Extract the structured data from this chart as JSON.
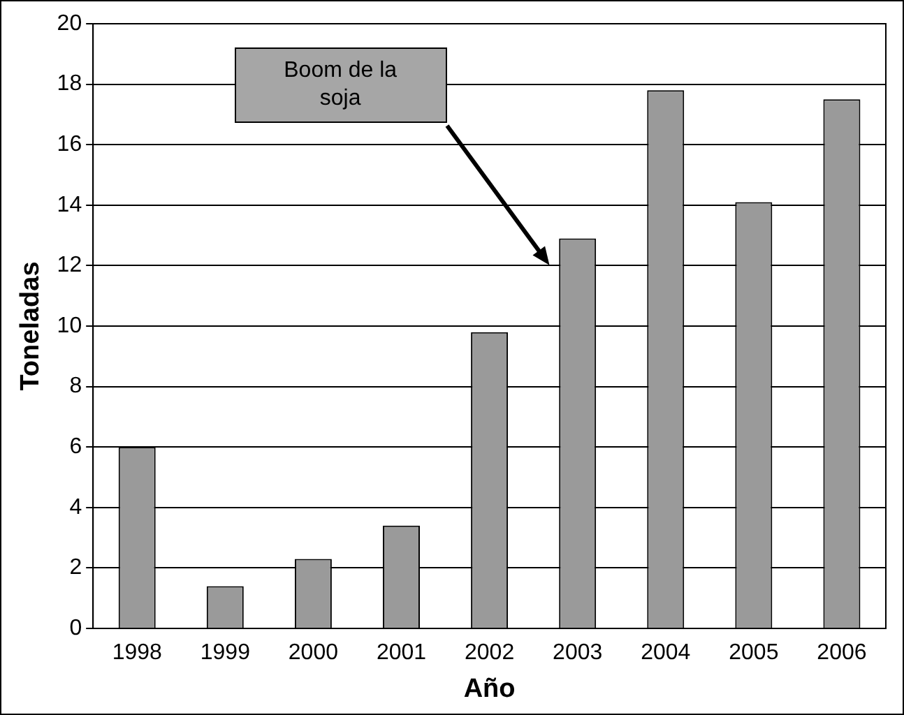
{
  "chart_data": {
    "type": "bar",
    "xlabel": "Año",
    "ylabel": "Toneladas",
    "categories": [
      "1998",
      "1999",
      "2000",
      "2001",
      "2002",
      "2003",
      "2004",
      "2005",
      "2006"
    ],
    "values": [
      6.0,
      1.4,
      2.3,
      3.4,
      9.8,
      12.9,
      17.8,
      14.1,
      17.5
    ],
    "color": "#9a9a9a",
    "ylim": [
      0,
      20
    ],
    "yticks": [
      0,
      2,
      4,
      6,
      8,
      10,
      12,
      14,
      16,
      18,
      20
    ],
    "grid": "y",
    "legend": false,
    "annotations": [
      "Boom de la soja"
    ]
  }
}
